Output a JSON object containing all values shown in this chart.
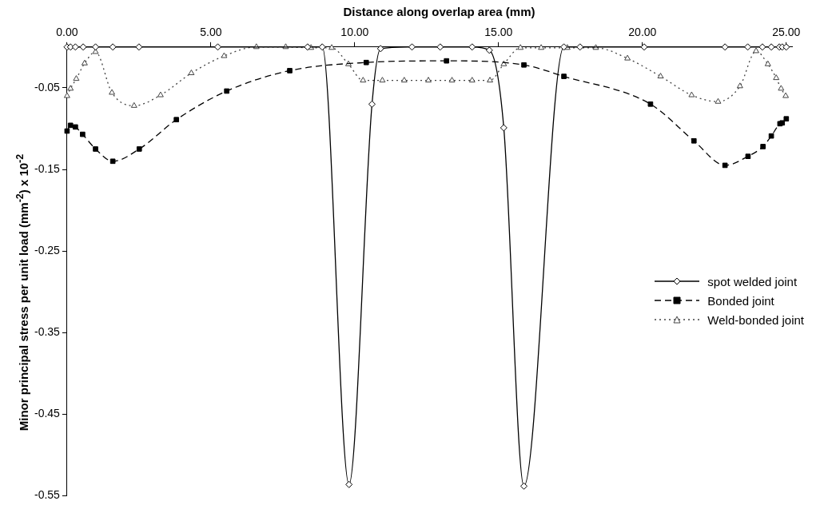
{
  "chart_data": {
    "type": "line",
    "xlabel": "Distance along overlap area (mm)",
    "ylabel": "Minor principal stress per unit load (mm$^{-2}$) x 10$^{-2}$",
    "xlim": [
      0,
      25.2
    ],
    "xticks": [
      {
        "value": 0,
        "label": "0.00"
      },
      {
        "value": 5,
        "label": "5.00"
      },
      {
        "value": 10,
        "label": "10.00"
      },
      {
        "value": 15,
        "label": "15.00"
      },
      {
        "value": 20,
        "label": "20.00"
      },
      {
        "value": 25,
        "label": "25.00"
      }
    ],
    "ylim": [
      -0.55,
      0
    ],
    "yticks": [
      -0.05,
      -0.15,
      -0.25,
      -0.35,
      -0.45,
      -0.55
    ],
    "grid": false,
    "legend": "right",
    "series": [
      {
        "name": "spot welded joint",
        "color": "#000000",
        "marker": "diamond",
        "line_style": "solid",
        "x": [
          0,
          0.12,
          0.29,
          0.56,
          0.99,
          1.59,
          2.5,
          5.24,
          8.36,
          8.87,
          9.8,
          10.6,
          10.9,
          11.99,
          12.97,
          14.08,
          14.68,
          15.18,
          15.88,
          17.27,
          17.83,
          20.06,
          22.87,
          23.66,
          24.17,
          24.48,
          24.76,
          24.86,
          25.0
        ],
        "values": [
          0,
          0,
          0,
          0,
          0,
          0,
          0,
          0,
          0,
          0,
          -0.536,
          -0.07,
          -0.002,
          0,
          0,
          0,
          -0.004,
          -0.099,
          -0.538,
          0,
          0,
          0,
          0,
          0,
          0,
          0,
          0,
          0,
          0
        ]
      },
      {
        "name": "Bonded joint",
        "color": "#000000",
        "marker": "square",
        "line_style": "dashed",
        "x": [
          0,
          0.12,
          0.29,
          0.54,
          0.99,
          1.59,
          2.51,
          3.8,
          5.55,
          7.74,
          10.4,
          13.19,
          15.88,
          17.27,
          20.28,
          21.79,
          22.87,
          23.67,
          24.19,
          24.48,
          24.78,
          24.86,
          25.0
        ],
        "values": [
          -0.103,
          -0.096,
          -0.098,
          -0.107,
          -0.125,
          -0.14,
          -0.125,
          -0.089,
          -0.054,
          -0.029,
          -0.019,
          -0.017,
          -0.022,
          -0.036,
          -0.07,
          -0.115,
          -0.145,
          -0.134,
          -0.122,
          -0.109,
          -0.094,
          -0.093,
          -0.088
        ]
      },
      {
        "name": "Weld-bonded joint",
        "color": "#444444",
        "marker": "triangle",
        "line_style": "dotted",
        "x": [
          0,
          0.12,
          0.32,
          0.61,
          0.99,
          1.56,
          2.33,
          3.25,
          4.32,
          5.46,
          6.58,
          7.6,
          8.48,
          9.2,
          9.78,
          10.29,
          10.96,
          11.72,
          12.56,
          13.38,
          14.08,
          14.7,
          15.18,
          15.76,
          16.48,
          17.39,
          18.38,
          19.48,
          20.63,
          21.71,
          22.63,
          23.39,
          23.95,
          24.36,
          24.65,
          24.82,
          24.98
        ],
        "values": [
          -0.06,
          -0.051,
          -0.039,
          -0.02,
          -0.006,
          -0.056,
          -0.072,
          -0.059,
          -0.032,
          -0.011,
          0,
          0,
          -0.001,
          -0.001,
          -0.021,
          -0.041,
          -0.041,
          -0.041,
          -0.041,
          -0.041,
          -0.041,
          -0.041,
          -0.021,
          -0.001,
          -0.001,
          -0.001,
          -0.001,
          -0.014,
          -0.036,
          -0.059,
          -0.067,
          -0.048,
          -0.005,
          -0.021,
          -0.038,
          -0.051,
          -0.06
        ]
      }
    ]
  }
}
